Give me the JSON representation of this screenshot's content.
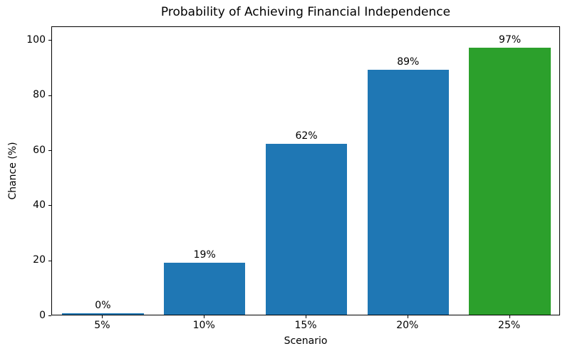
{
  "chart_data": {
    "type": "bar",
    "title": "Probability of Achieving Financial Independence",
    "xlabel": "Scenario",
    "ylabel": "Chance (%)",
    "categories": [
      "5%",
      "10%",
      "15%",
      "20%",
      "25%"
    ],
    "values": [
      0,
      19,
      62,
      89,
      97
    ],
    "bar_labels": [
      "0%",
      "19%",
      "62%",
      "89%",
      "97%"
    ],
    "bar_colors": [
      "#1f77b4",
      "#1f77b4",
      "#1f77b4",
      "#1f77b4",
      "#2ca02c"
    ],
    "yticks": [
      0,
      20,
      40,
      60,
      80,
      100
    ],
    "ytick_labels": [
      "0",
      "20",
      "40",
      "60",
      "80",
      "100"
    ],
    "ylim": [
      0,
      105
    ],
    "grid": false,
    "legend": null,
    "background_color": "#ffffff",
    "spine_color": "#000000",
    "text_color": "#000000"
  }
}
